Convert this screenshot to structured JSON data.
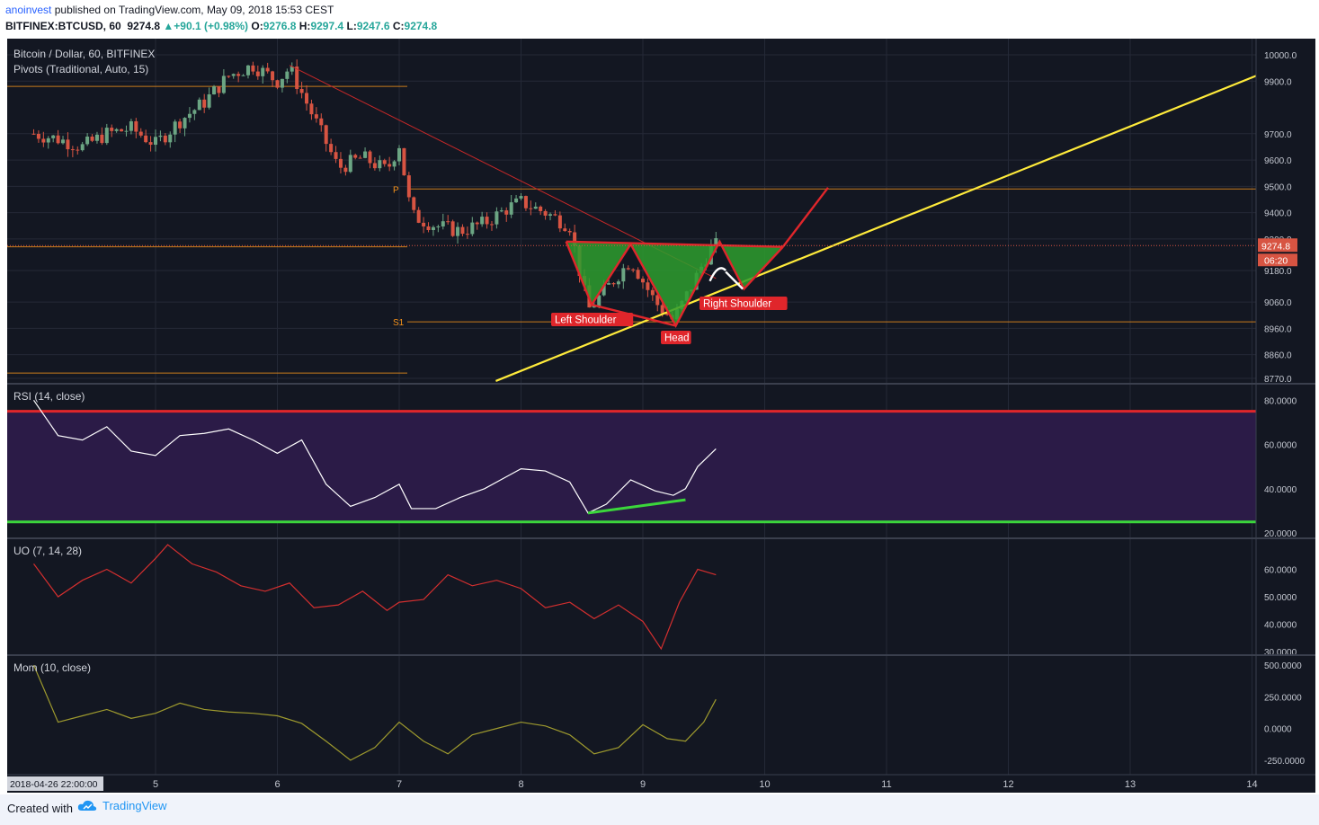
{
  "header": {
    "author": "anoinvest",
    "published_text": "published on TradingView.com, May 09, 2018 15:53 CEST",
    "symbol": "BITFINEX:BTCUSD, 60",
    "last": "9274.8",
    "change": "+90.1 (+0.98%)",
    "o_label": "O:",
    "o_value": "9276.8",
    "h_label": "H:",
    "h_value": "9297.4",
    "l_label": "L:",
    "l_value": "9247.6",
    "c_label": "C:",
    "c_value": "9274.8"
  },
  "footer": {
    "created_with": "Created with",
    "brand": "TradingView"
  },
  "colors": {
    "background": "#131722",
    "up_candle": "#6ba583",
    "down_candle": "#d75442",
    "pivot_line": "#f7931a",
    "trendline": "#ffeb3b",
    "pattern_red": "#e0262b",
    "pattern_fill": "#2e9e2e",
    "rsi_band": "#2b1b47",
    "rsi_upper": "#e0262b",
    "rsi_lower": "#3bd63b",
    "uo_line": "#d32f2f",
    "mom_line": "#9e9a2e"
  },
  "chart_data": [
    {
      "type": "line",
      "title": "Bitcoin / Dollar, 60, BITFINEX",
      "subtitle": "Pivots (Traditional, Auto, 15)",
      "series": [
        {
          "name": "BTCUSD",
          "x": [
            4.0,
            4.2,
            4.4,
            4.6,
            4.8,
            5.0,
            5.2,
            5.4,
            5.6,
            5.8,
            6.0,
            6.1,
            6.3,
            6.5,
            6.7,
            6.9,
            7.0,
            7.1,
            7.3,
            7.5,
            7.7,
            7.9,
            8.0,
            8.2,
            8.4,
            8.55,
            8.7,
            8.9,
            9.1,
            9.25,
            9.4,
            9.55,
            9.6
          ],
          "values": [
            9700,
            9680,
            9650,
            9700,
            9720,
            9660,
            9750,
            9820,
            9920,
            9960,
            9900,
            9950,
            9760,
            9570,
            9610,
            9560,
            9660,
            9390,
            9350,
            9330,
            9360,
            9420,
            9440,
            9400,
            9350,
            9030,
            9110,
            9220,
            9060,
            8990,
            9120,
            9260,
            9275
          ]
        }
      ],
      "pivot_levels": [
        {
          "label": "P",
          "value": 9490
        },
        {
          "label": "S1",
          "value": 8985
        },
        {
          "label": "",
          "value": 9880
        },
        {
          "label": "",
          "value": 9270
        },
        {
          "label": "",
          "value": 8790
        }
      ],
      "last_price_label": "9274.8",
      "countdown_label": "06:20",
      "annotations": [
        "Left Shoulder",
        "Head",
        "Right Shoulder"
      ],
      "ylim": [
        8770,
        10000
      ],
      "y_ticks": [
        "10000.0",
        "9900.0",
        "9700.0",
        "9600.0",
        "9500.0",
        "9400.0",
        "9300.0",
        "9180.0",
        "9060.0",
        "8960.0",
        "8860.0",
        "8770.0"
      ],
      "x_ticks": [
        "5",
        "6",
        "7",
        "8",
        "9",
        "10",
        "11",
        "12",
        "13",
        "14"
      ],
      "x_start_label": "2018-04-26 22:00:00"
    },
    {
      "type": "line",
      "title": "RSI (14, close)",
      "series": [
        {
          "name": "RSI",
          "x": [
            4.0,
            4.2,
            4.4,
            4.6,
            4.8,
            5.0,
            5.2,
            5.4,
            5.6,
            5.8,
            6.0,
            6.2,
            6.4,
            6.6,
            6.8,
            7.0,
            7.1,
            7.3,
            7.5,
            7.7,
            7.9,
            8.0,
            8.2,
            8.4,
            8.55,
            8.7,
            8.9,
            9.1,
            9.25,
            9.35,
            9.45,
            9.6
          ],
          "values": [
            80,
            64,
            62,
            68,
            57,
            55,
            64,
            65,
            67,
            62,
            56,
            62,
            42,
            32,
            36,
            42,
            31,
            31,
            36,
            40,
            46,
            49,
            48,
            43,
            29,
            33,
            44,
            39,
            37,
            40,
            50,
            58
          ]
        }
      ],
      "levels": [
        75,
        25
      ],
      "ylim": [
        20,
        85
      ],
      "y_ticks": [
        "80.0000",
        "60.0000",
        "40.0000",
        "20.0000"
      ]
    },
    {
      "type": "line",
      "title": "UO (7, 14, 28)",
      "series": [
        {
          "name": "UO",
          "x": [
            4.0,
            4.2,
            4.4,
            4.6,
            4.8,
            5.0,
            5.1,
            5.3,
            5.5,
            5.7,
            5.9,
            6.1,
            6.3,
            6.5,
            6.7,
            6.9,
            7.0,
            7.2,
            7.4,
            7.6,
            7.8,
            8.0,
            8.2,
            8.4,
            8.6,
            8.8,
            9.0,
            9.15,
            9.3,
            9.45,
            9.6
          ],
          "values": [
            62,
            50,
            56,
            60,
            55,
            64,
            69,
            62,
            59,
            54,
            52,
            55,
            46,
            47,
            52,
            45,
            48,
            49,
            58,
            54,
            56,
            53,
            46,
            48,
            42,
            47,
            41,
            31,
            48,
            60,
            58
          ]
        }
      ],
      "ylim": [
        30,
        70
      ],
      "y_ticks": [
        "60.0000",
        "50.0000",
        "40.0000",
        "30.0000"
      ]
    },
    {
      "type": "line",
      "title": "Mom (10, close)",
      "series": [
        {
          "name": "Mom",
          "x": [
            4.0,
            4.2,
            4.4,
            4.6,
            4.8,
            5.0,
            5.2,
            5.4,
            5.6,
            5.8,
            6.0,
            6.2,
            6.4,
            6.6,
            6.8,
            7.0,
            7.2,
            7.4,
            7.6,
            7.8,
            8.0,
            8.2,
            8.4,
            8.6,
            8.8,
            9.0,
            9.2,
            9.35,
            9.5,
            9.6
          ],
          "values": [
            500,
            50,
            100,
            150,
            80,
            120,
            200,
            150,
            130,
            120,
            100,
            40,
            -100,
            -250,
            -150,
            50,
            -100,
            -200,
            -50,
            0,
            50,
            20,
            -50,
            -200,
            -150,
            30,
            -80,
            -100,
            50,
            230
          ]
        }
      ],
      "ylim": [
        -350,
        550
      ],
      "y_ticks": [
        "500.0000",
        "250.0000",
        "0.0000",
        "-250.0000"
      ]
    }
  ]
}
